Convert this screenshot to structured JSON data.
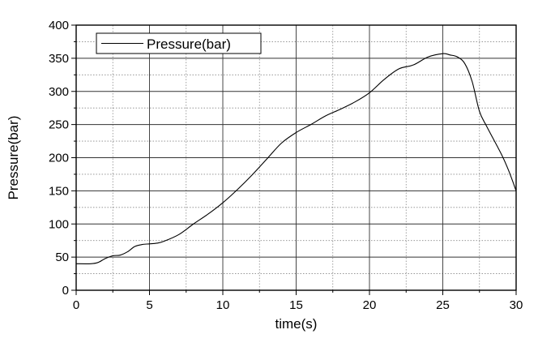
{
  "chart_data": {
    "type": "line",
    "xlabel": "time(s)",
    "ylabel": "Pressure(bar)",
    "xlim": [
      0,
      30
    ],
    "ylim": [
      0,
      400
    ],
    "x_ticks": [
      "0",
      "5",
      "10",
      "15",
      "20",
      "25",
      "30"
    ],
    "y_ticks": [
      "0",
      "50",
      "100",
      "150",
      "200",
      "250",
      "300",
      "350",
      "400"
    ],
    "grid": "major solid, minor dotted",
    "legend_position": "top-left",
    "line_color": "#000000",
    "series": [
      {
        "name": "Pressure(bar)",
        "x": [
          0,
          1,
          1.5,
          2,
          2.5,
          3,
          3.5,
          4,
          4.5,
          5,
          5.5,
          6,
          7,
          8,
          9,
          10,
          11,
          12,
          13,
          14,
          15,
          16,
          17,
          18,
          19,
          20,
          21,
          22,
          23,
          24,
          25,
          25.5,
          26,
          26.5,
          27,
          27.5,
          28,
          29,
          29.5,
          30
        ],
        "y": [
          40,
          40,
          42,
          48,
          52,
          53,
          58,
          66,
          69,
          70,
          71,
          74,
          84,
          100,
          115,
          132,
          152,
          174,
          198,
          222,
          238,
          250,
          263,
          273,
          284,
          298,
          318,
          334,
          340,
          352,
          357,
          355,
          352,
          342,
          315,
          270,
          247,
          205,
          180,
          150
        ]
      }
    ]
  }
}
